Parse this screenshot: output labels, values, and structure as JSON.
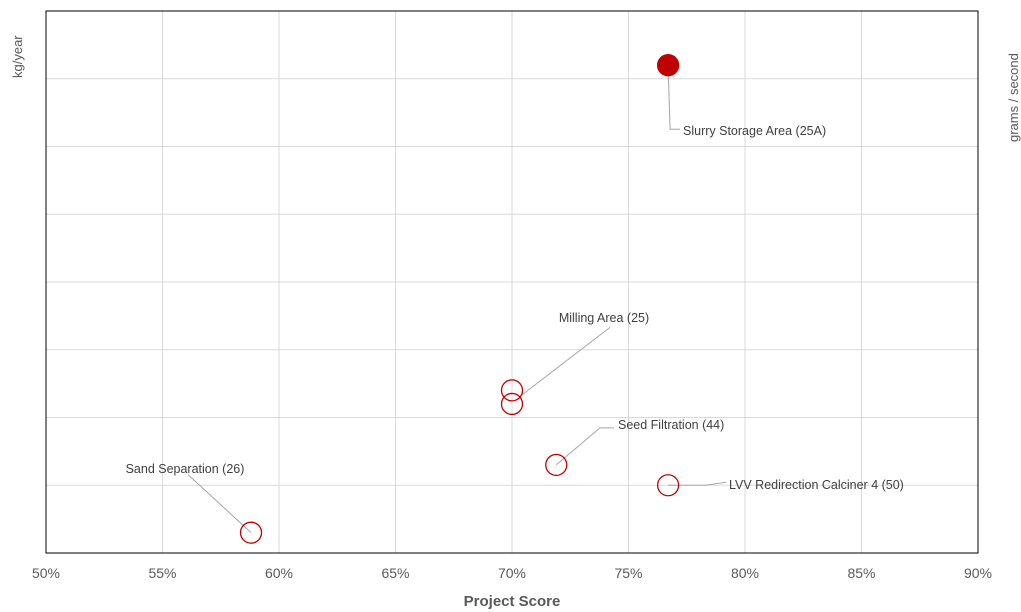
{
  "chart_data": {
    "type": "scatter",
    "title": "",
    "xlabel": "Project Score",
    "ylabel": "kg/year",
    "y2label": "grams / second",
    "xlim": [
      0.5,
      0.9
    ],
    "ylim": [
      0,
      8
    ],
    "x_ticks": [
      "50%",
      "55%",
      "60%",
      "65%",
      "70%",
      "75%",
      "80%",
      "85%",
      "90%"
    ],
    "y_tick_labels_visible": false,
    "grid": true,
    "legend": "none",
    "colors": {
      "marker": "#c00000",
      "leader": "#a6a6a6",
      "grid": "#d9d9d9",
      "axis": "#000000",
      "tick_text": "#595959"
    },
    "points": [
      {
        "x": 0.767,
        "y": 7.2,
        "filled": true,
        "label": "Slurry Storage Area (25A)"
      },
      {
        "x": 0.7,
        "y": 2.4,
        "filled": false,
        "label": "Milling Area (25)"
      },
      {
        "x": 0.7,
        "y": 2.2,
        "filled": false,
        "label": ""
      },
      {
        "x": 0.719,
        "y": 1.3,
        "filled": false,
        "label": "Seed Filtration (44)"
      },
      {
        "x": 0.767,
        "y": 1.0,
        "filled": false,
        "label": "LVV Redirection Calciner 4 (50)"
      },
      {
        "x": 0.588,
        "y": 0.3,
        "filled": false,
        "label": "Sand Separation (26)"
      }
    ]
  }
}
